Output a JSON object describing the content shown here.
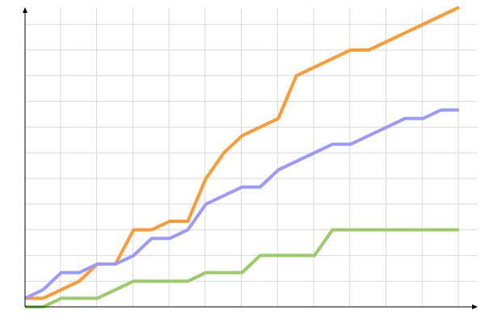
{
  "chart_data": {
    "type": "line",
    "title": "",
    "xlabel": "",
    "ylabel": "",
    "x": [
      0,
      1,
      2,
      3,
      4,
      5,
      6,
      7,
      8,
      9,
      10,
      11,
      12,
      13,
      14,
      15,
      16,
      17,
      18,
      19,
      20,
      21,
      22,
      23,
      24
    ],
    "xlim": [
      0,
      24
    ],
    "ylim": [
      0,
      35
    ],
    "x_grid_step": 2,
    "y_grid_step": 3,
    "grid": true,
    "tick_labels": false,
    "legend": "none",
    "series": [
      {
        "color": "#ff9933",
        "values": [
          1,
          1,
          2,
          3,
          5,
          5,
          9,
          9,
          10,
          10,
          15,
          18,
          20,
          21,
          22,
          27,
          28,
          29,
          30,
          30,
          31,
          32,
          33,
          34,
          35
        ]
      },
      {
        "color": "#9999ff",
        "values": [
          1,
          2,
          4,
          4,
          5,
          5,
          6,
          8,
          8,
          9,
          12,
          13,
          14,
          14,
          16,
          17,
          18,
          19,
          19,
          20,
          21,
          22,
          22,
          23,
          23
        ]
      },
      {
        "color": "#99cc66",
        "values": [
          0,
          0,
          1,
          1,
          1,
          2,
          3,
          3,
          3,
          3,
          4,
          4,
          4,
          6,
          6,
          6,
          6,
          9,
          9,
          9,
          9,
          9,
          9,
          9,
          9
        ]
      }
    ],
    "grid_color": "#d9d9d9",
    "axis_color": "#000000"
  }
}
